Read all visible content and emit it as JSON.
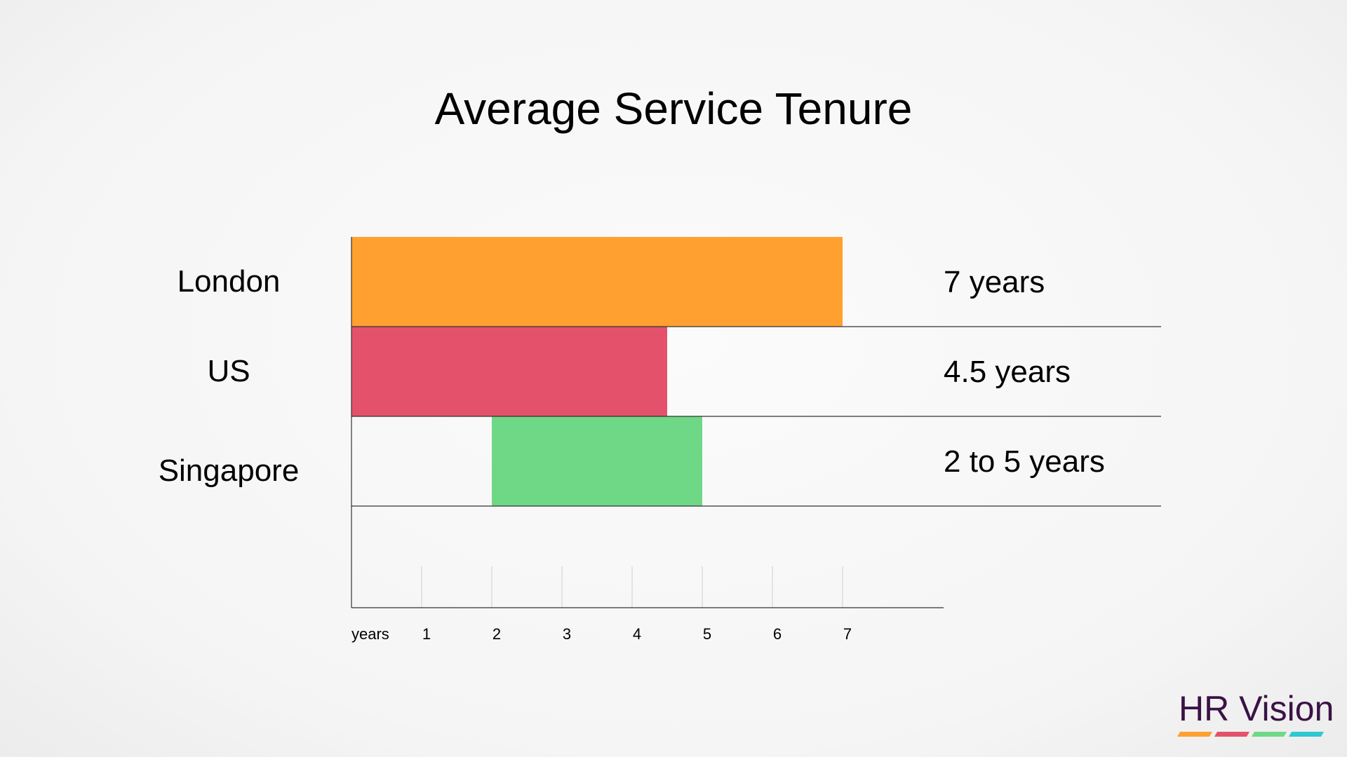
{
  "title": "Average Service Tenure",
  "chart_data": {
    "type": "bar",
    "orientation": "horizontal",
    "title": "Average Service Tenure",
    "xlabel": "years",
    "xlim": [
      0,
      8
    ],
    "xticks": [
      1,
      2,
      3,
      4,
      5,
      6,
      7
    ],
    "categories": [
      "London",
      "US",
      "Singapore"
    ],
    "bars": [
      {
        "category": "London",
        "start": 0,
        "end": 7,
        "label": "7 years",
        "color": "#ffa030"
      },
      {
        "category": "US",
        "start": 0,
        "end": 4.5,
        "label": "4.5 years",
        "color": "#e3526a"
      },
      {
        "category": "Singapore",
        "start": 2,
        "end": 5,
        "label": "2 to 5 years",
        "color": "#6fd886"
      }
    ],
    "grid": "vertical tick lines at each year"
  },
  "logo": {
    "text": "HR Vision",
    "stripe_colors": [
      "#ffa030",
      "#e3526a",
      "#6fd886",
      "#2ec8d0"
    ]
  }
}
